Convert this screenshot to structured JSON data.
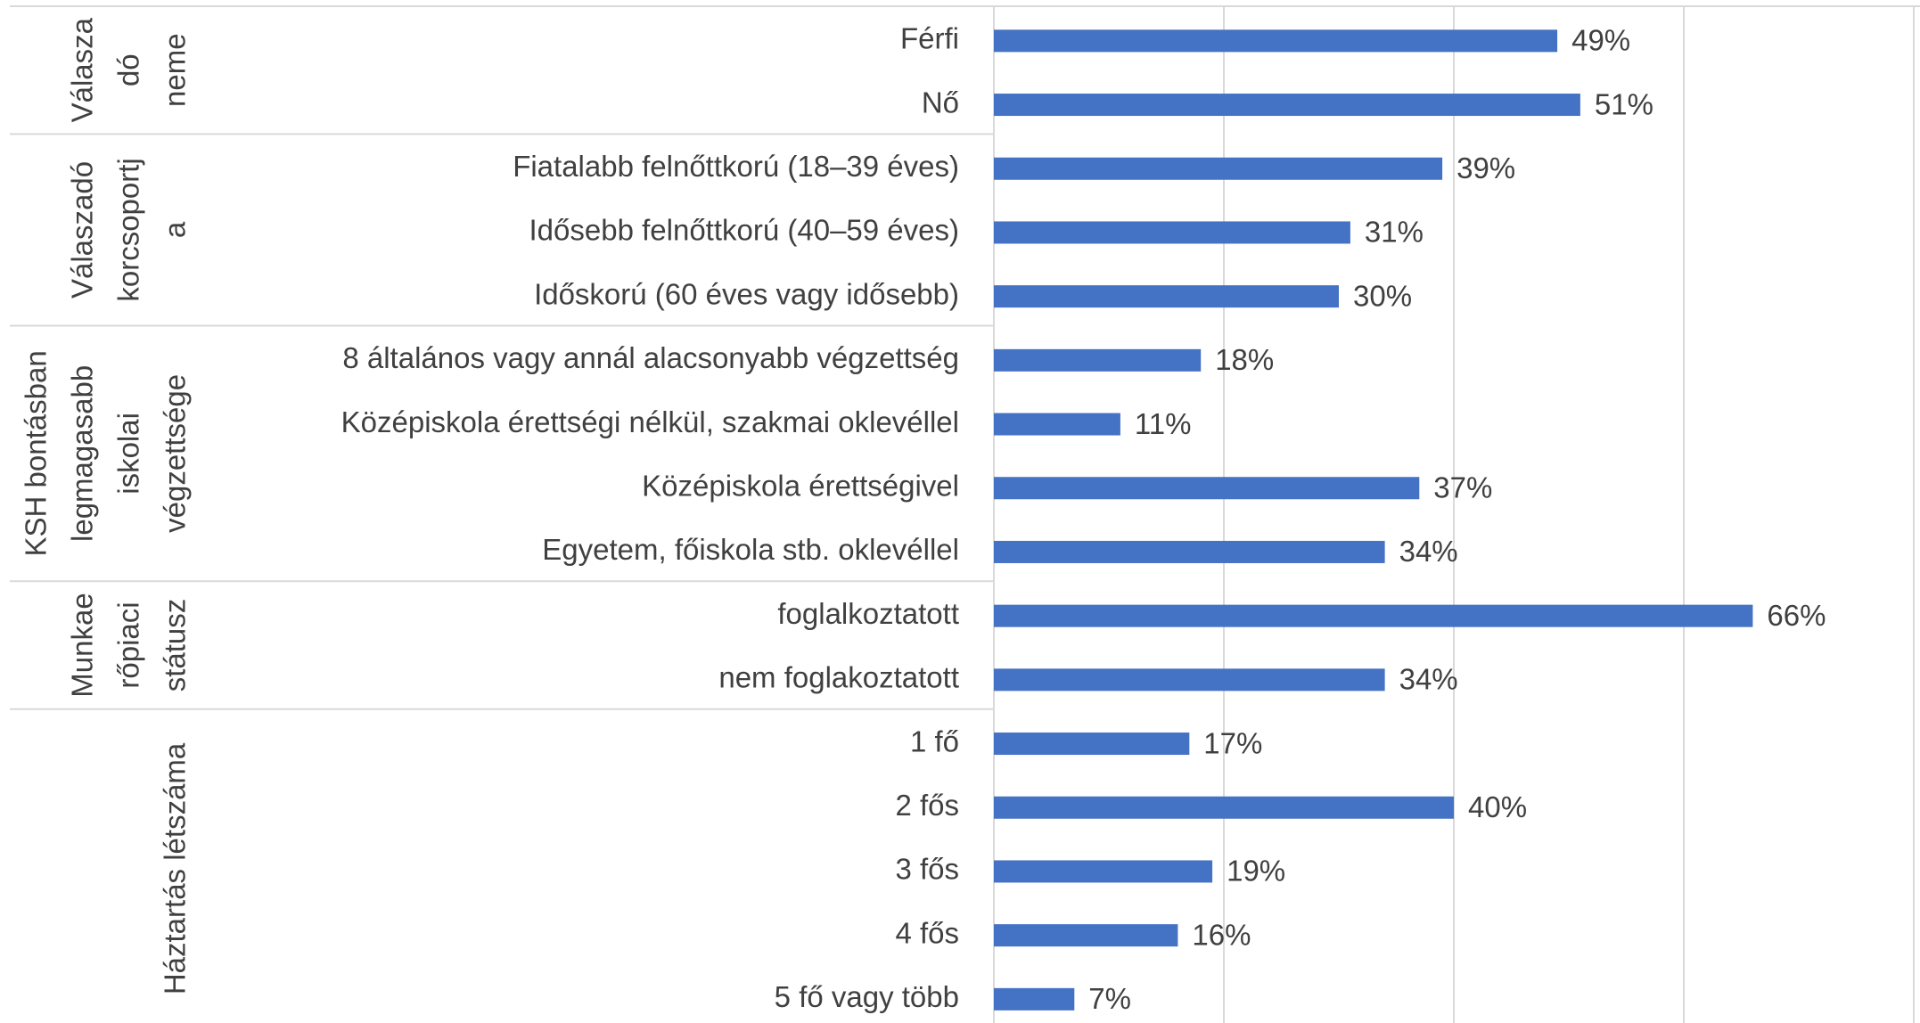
{
  "chart_data": {
    "type": "bar",
    "orientation": "horizontal",
    "color": "#4472c4",
    "xlim": [
      0,
      80
    ],
    "xticks": [
      0,
      20,
      40,
      60,
      80
    ],
    "grid": true,
    "groups": [
      {
        "label_lines": [
          "Válasza",
          "dó",
          "neme"
        ],
        "categories": [
          "Férfi",
          "Nő"
        ],
        "values": [
          49,
          51
        ],
        "value_labels": [
          "49%",
          "51%"
        ]
      },
      {
        "label_lines": [
          "Válaszadó",
          "korcsoportj",
          "a"
        ],
        "categories": [
          "Fiatalabb felnőttkorú (18–39 éves)",
          "Idősebb felnőttkorú (40–59 éves)",
          "Időskorú (60 éves vagy idősebb)"
        ],
        "values": [
          39,
          31,
          30
        ],
        "value_labels": [
          "39%",
          "31%",
          "30%"
        ]
      },
      {
        "label_lines": [
          "KSH bontásban",
          "legmagasabb",
          "iskolai",
          "végzettsége"
        ],
        "categories": [
          "8 általános vagy annál alacsonyabb végzettség",
          "Középiskola érettségi nélkül, szakmai oklevéllel",
          "Középiskola érettségivel",
          "Egyetem, főiskola stb. oklevéllel"
        ],
        "values": [
          18,
          11,
          37,
          34
        ],
        "value_labels": [
          "18%",
          "11%",
          "37%",
          "34%"
        ]
      },
      {
        "label_lines": [
          "Munkae",
          "rőpiaci",
          "státusz"
        ],
        "categories": [
          "foglalkoztatott",
          "nem foglakoztatott"
        ],
        "values": [
          66,
          34
        ],
        "value_labels": [
          "66%",
          "34%"
        ]
      },
      {
        "label_lines": [
          "Háztartás létszáma"
        ],
        "categories": [
          "1 fő",
          "2 fős",
          "3 fős",
          "4 fős",
          "5 fő vagy több"
        ],
        "values": [
          17,
          40,
          19,
          16,
          7
        ],
        "value_labels": [
          "17%",
          "40%",
          "19%",
          "16%",
          "7%"
        ]
      }
    ]
  }
}
